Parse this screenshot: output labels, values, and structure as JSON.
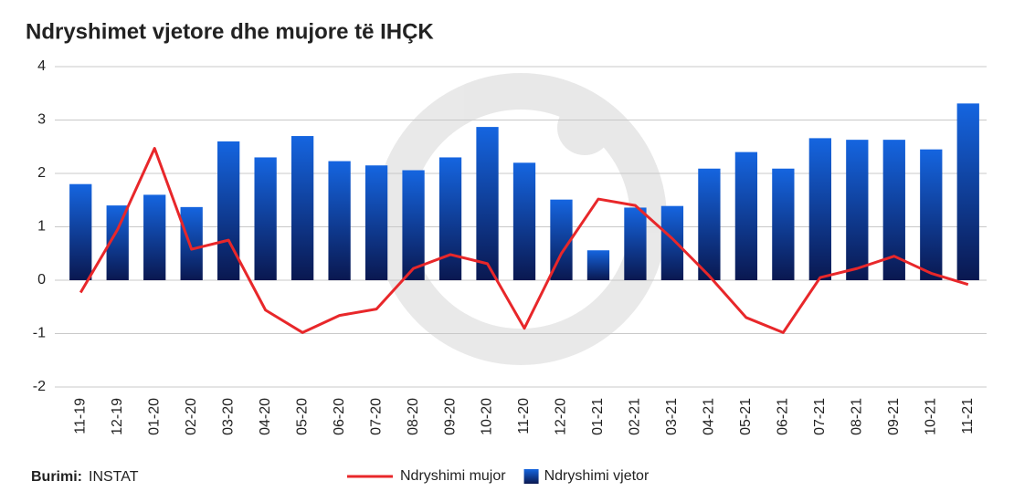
{
  "chart_data": {
    "type": "bar",
    "title": "Ndryshimet vjetore dhe mujore të IHÇK",
    "source_label": "Burimi:",
    "source": "INSTAT",
    "categories": [
      "11-19",
      "12-19",
      "01-20",
      "02-20",
      "03-20",
      "04-20",
      "05-20",
      "06-20",
      "07-20",
      "08-20",
      "09-20",
      "10-20",
      "11-20",
      "12-20",
      "01-21",
      "02-21",
      "03-21",
      "04-21",
      "05-21",
      "06-21",
      "07-21",
      "08-21",
      "09-21",
      "10-21",
      "11-21"
    ],
    "series": [
      {
        "name": "Ndryshimi mujor",
        "type": "line",
        "color": "#e8272a",
        "values": [
          -0.23,
          0.95,
          2.47,
          0.58,
          0.75,
          -0.56,
          -0.98,
          -0.66,
          -0.54,
          0.22,
          0.48,
          0.31,
          -0.9,
          0.5,
          1.52,
          1.4,
          0.78,
          0.08,
          -0.7,
          -0.98,
          0.05,
          0.22,
          0.45,
          0.13,
          -0.08
        ]
      },
      {
        "name": "Ndryshimi vjetor",
        "type": "bar",
        "color": "#1565e0",
        "values": [
          1.8,
          1.4,
          1.6,
          1.37,
          2.6,
          2.3,
          2.7,
          2.23,
          2.15,
          2.06,
          2.3,
          2.87,
          2.2,
          1.51,
          0.56,
          1.36,
          1.39,
          2.09,
          2.4,
          2.09,
          2.66,
          2.63,
          2.63,
          2.45,
          3.31
        ]
      }
    ],
    "ylim": [
      -2,
      4
    ],
    "yticks": [
      -2,
      -1,
      0,
      1,
      2,
      3,
      4
    ],
    "grid": true
  }
}
